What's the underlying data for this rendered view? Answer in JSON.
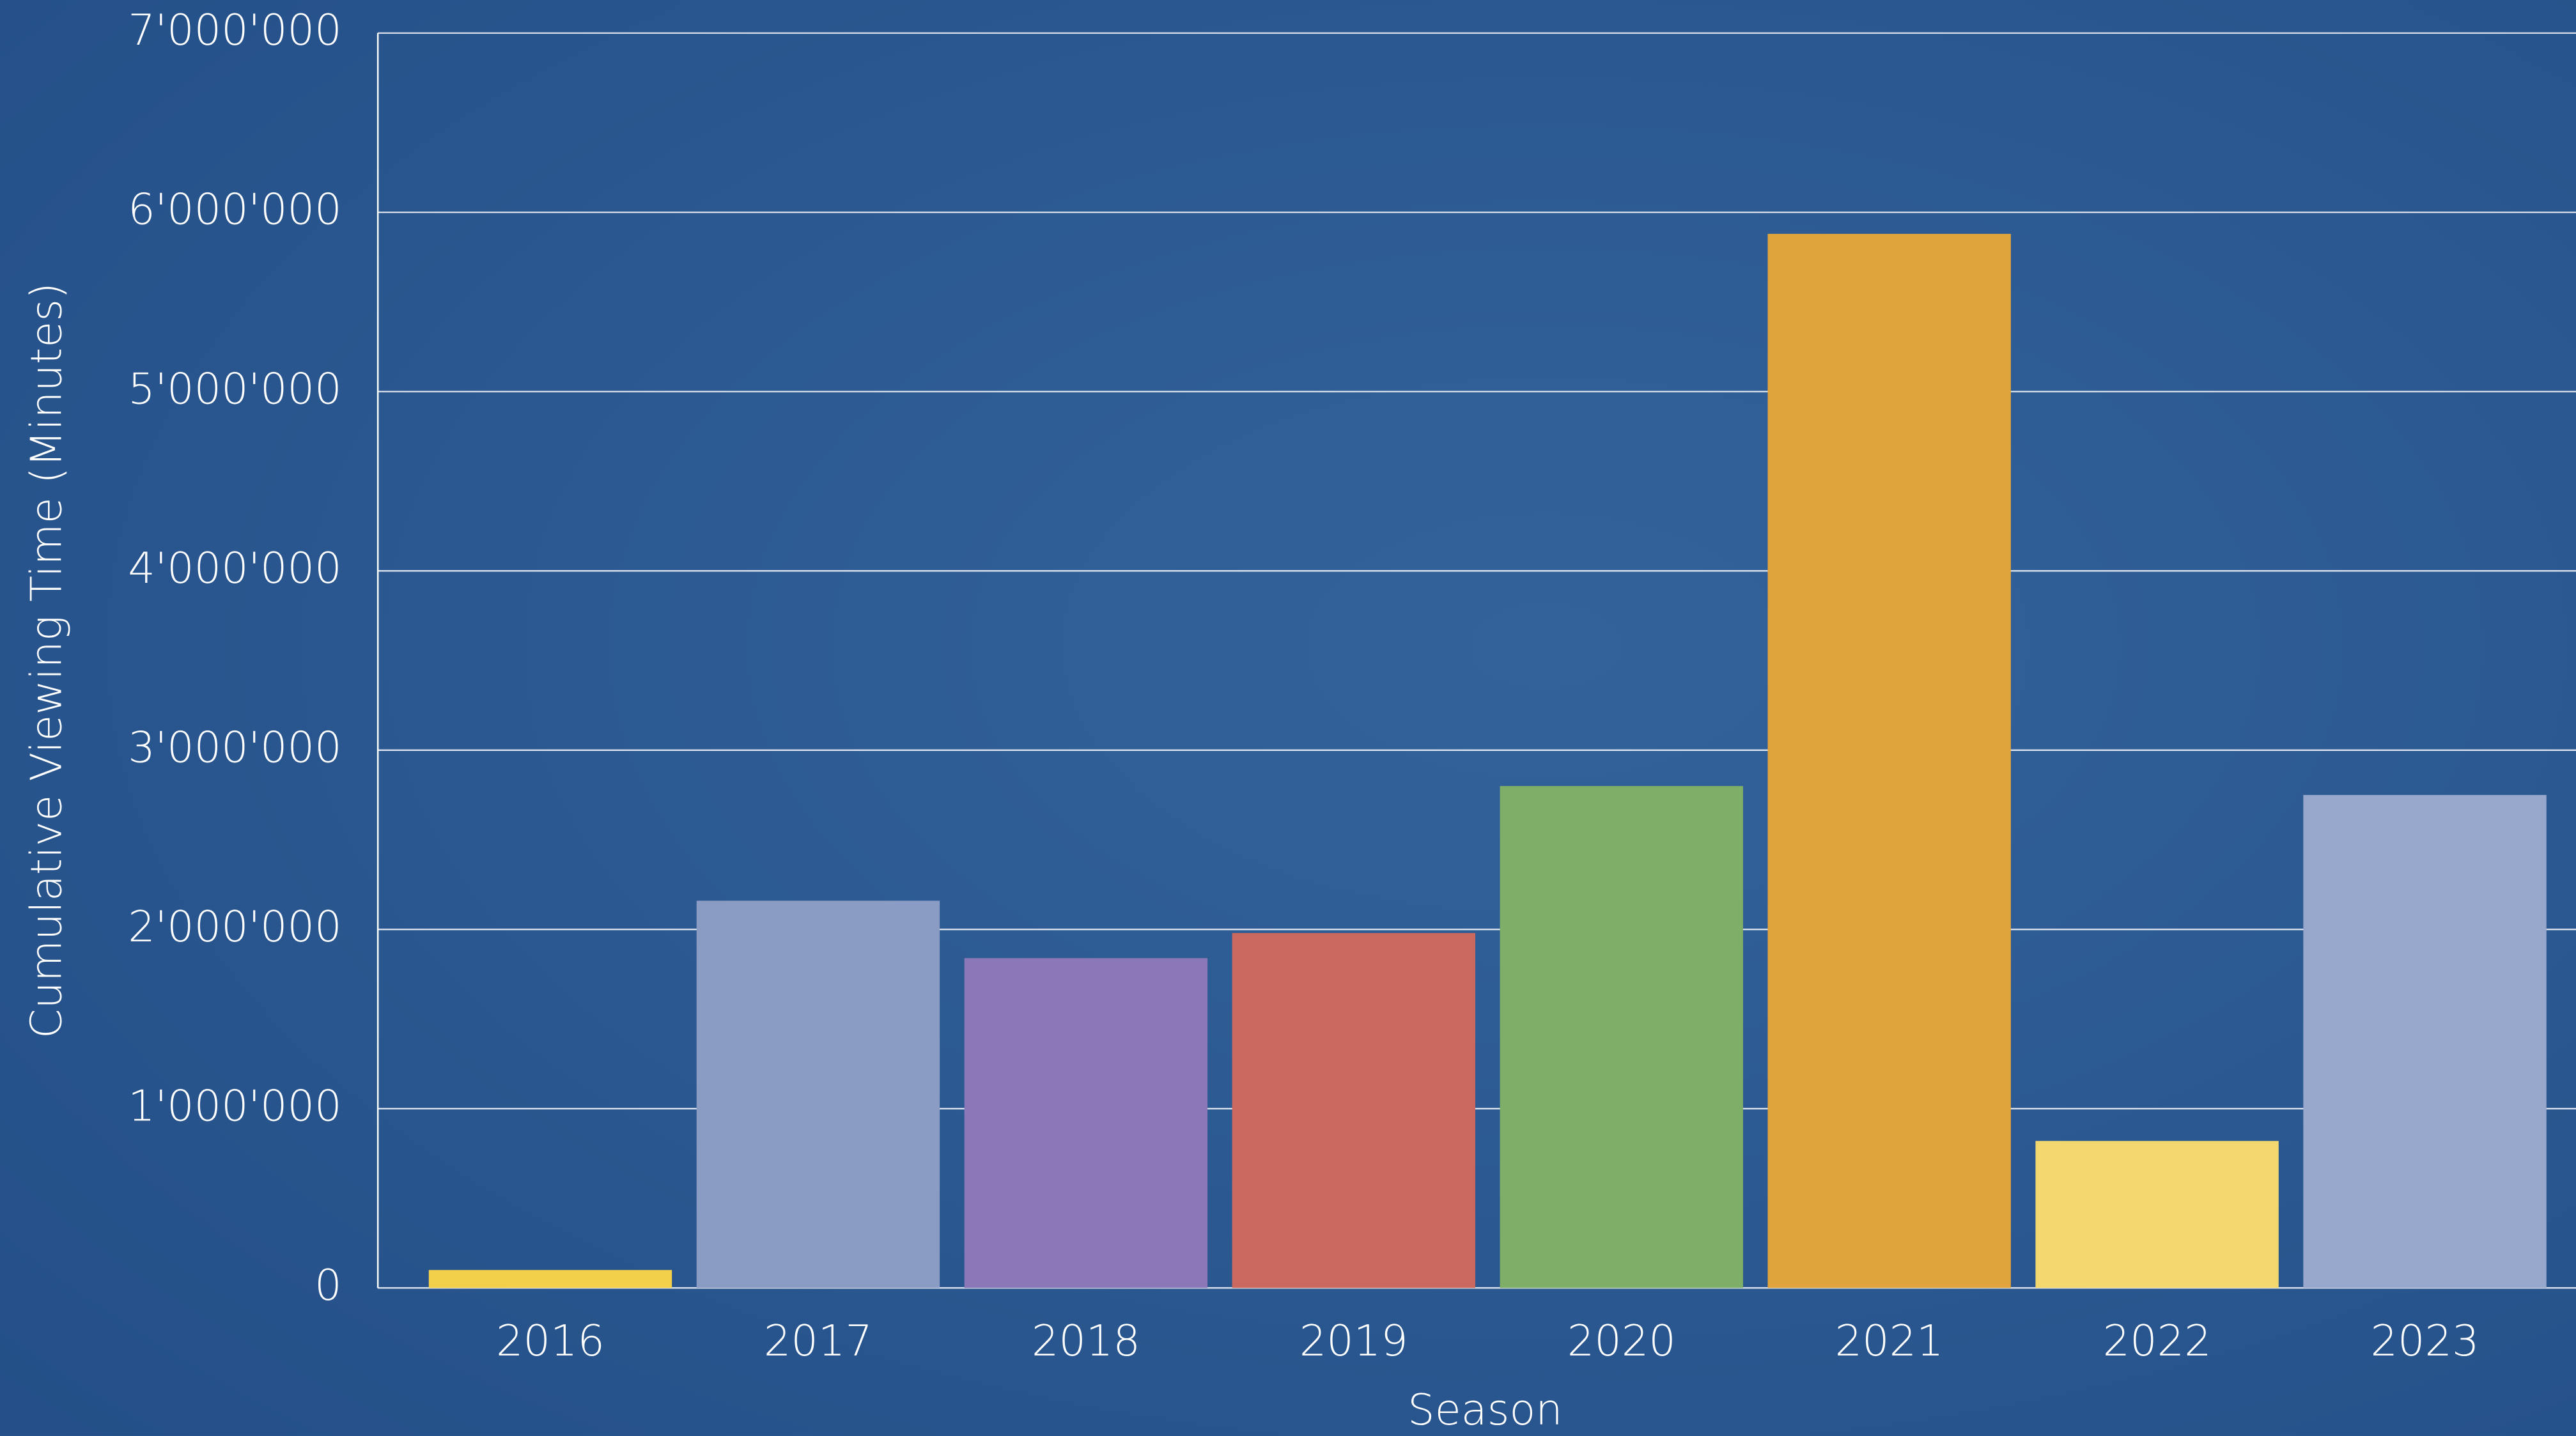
{
  "chart_data": {
    "type": "bar",
    "y_label": "Cumulative Viewing Time (Minutes)",
    "x_label": "Season",
    "categories": [
      "2016",
      "2017",
      "2018",
      "2019",
      "2020",
      "2021",
      "2022",
      "2023"
    ],
    "values": [
      100000,
      2160000,
      1840000,
      1980000,
      2800000,
      5880000,
      820000,
      2750000
    ],
    "colors": [
      "#f2d04a",
      "#8b9cc4",
      "#8a78b8",
      "#c9685e",
      "#7fae68",
      "#e0a43c",
      "#f3d870",
      "#98a8cc"
    ],
    "ylim": [
      0,
      7000000
    ],
    "yticks": [
      0,
      {
        "value": 1000000,
        "label": "1'000'000"
      },
      {
        "value": 2000000,
        "label": "2'000'000"
      },
      {
        "value": 3000000,
        "label": "3'000'000"
      },
      {
        "value": 4000000,
        "label": "4'000'000"
      },
      {
        "value": 5000000,
        "label": "5'000'000"
      },
      {
        "value": 6000000,
        "label": "6'000'000"
      },
      {
        "value": 7000000,
        "label": "7'000'000"
      }
    ],
    "grid": true
  }
}
